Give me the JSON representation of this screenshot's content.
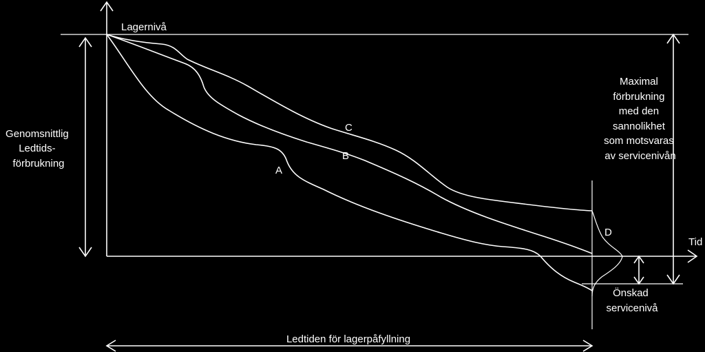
{
  "labels": {
    "stock_level": "Lagernivå",
    "time": "Tid",
    "lead_time": "Ledtiden för lagerpåfyllning",
    "avg_consumption": [
      "Genomsnittlig",
      "Ledtids-",
      "förbrukning"
    ],
    "max_consumption": [
      "Maximal",
      "förbrukning",
      "med den",
      "sannolikhet",
      "som motsvaras",
      "av servicenivån"
    ],
    "service_level": [
      "Önskad",
      "servicenivå"
    ]
  },
  "curves": {
    "a": "A",
    "b": "B",
    "c": "C",
    "d": "D"
  },
  "colors": {
    "background": "#000000",
    "foreground": "#ffffff"
  }
}
